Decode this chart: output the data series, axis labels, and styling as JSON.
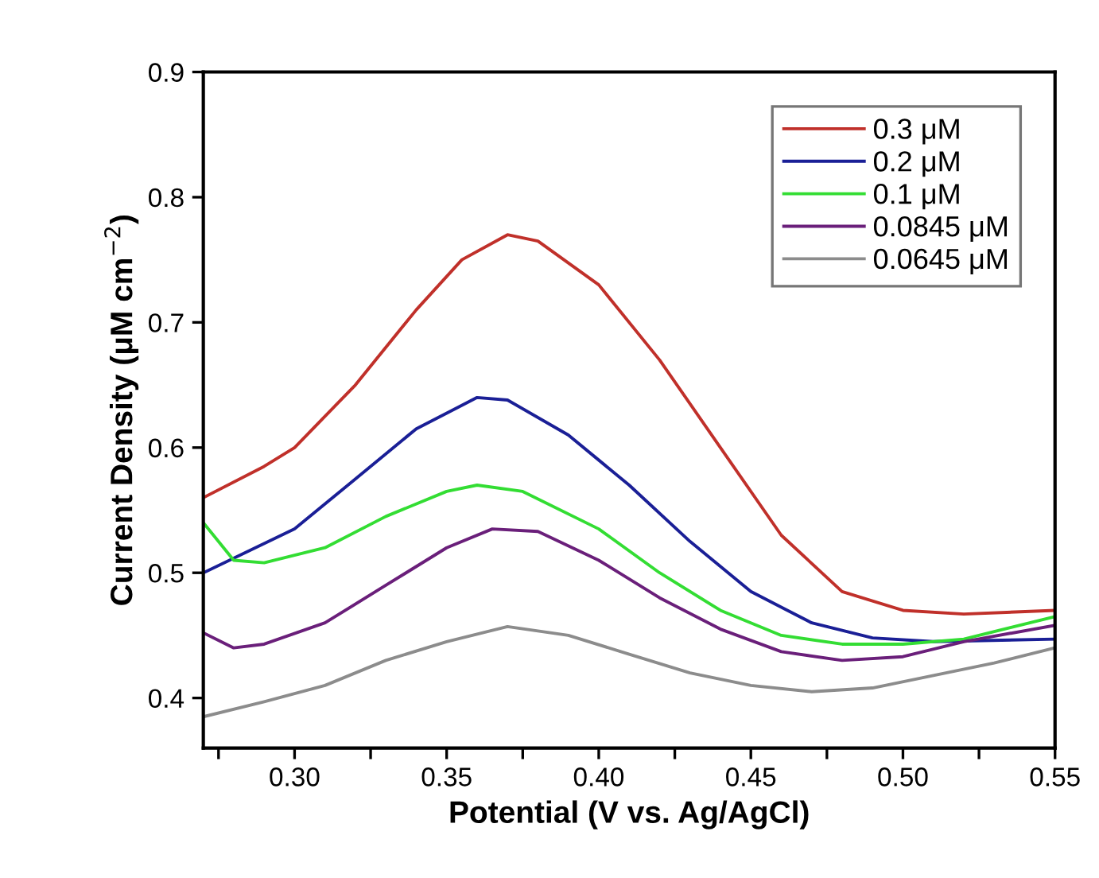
{
  "chart_data": {
    "type": "line",
    "xlabel": "Potential (V vs. Ag/AgCl)",
    "ylabel": "Current Density (μM cm$^{−2}$)",
    "xlim": [
      0.27,
      0.55
    ],
    "xticks": [
      {
        "value": 0.275,
        "label": null
      },
      {
        "value": 0.3,
        "label": "0.30"
      },
      {
        "value": 0.325,
        "label": null
      },
      {
        "value": 0.35,
        "label": "0.35"
      },
      {
        "value": 0.375,
        "label": null
      },
      {
        "value": 0.4,
        "label": "0.40"
      },
      {
        "value": 0.425,
        "label": null
      },
      {
        "value": 0.45,
        "label": "0.45"
      },
      {
        "value": 0.475,
        "label": null
      },
      {
        "value": 0.5,
        "label": "0.50"
      },
      {
        "value": 0.525,
        "label": null
      },
      {
        "value": 0.55,
        "label": "0.55"
      }
    ],
    "ylim": [
      0.36,
      0.9
    ],
    "yticks": [
      0.4,
      0.5,
      0.6,
      0.7,
      0.8,
      0.9
    ],
    "grid": false,
    "legend": "top right",
    "marker": "none",
    "line_style": "solid",
    "series": [
      {
        "name": "0.3 μM",
        "color": "#c0302a",
        "x": [
          0.27,
          0.29,
          0.3,
          0.32,
          0.34,
          0.355,
          0.37,
          0.38,
          0.4,
          0.42,
          0.44,
          0.46,
          0.48,
          0.5,
          0.52,
          0.55
        ],
        "values": [
          0.56,
          0.585,
          0.6,
          0.65,
          0.71,
          0.75,
          0.77,
          0.765,
          0.73,
          0.67,
          0.6,
          0.53,
          0.485,
          0.47,
          0.467,
          0.47
        ]
      },
      {
        "name": "0.2 μM",
        "color": "#1a1f96",
        "x": [
          0.27,
          0.3,
          0.32,
          0.34,
          0.36,
          0.37,
          0.39,
          0.41,
          0.43,
          0.45,
          0.47,
          0.49,
          0.51,
          0.55
        ],
        "values": [
          0.5,
          0.535,
          0.575,
          0.615,
          0.64,
          0.638,
          0.61,
          0.57,
          0.525,
          0.485,
          0.46,
          0.448,
          0.445,
          0.447
        ]
      },
      {
        "name": "0.1 μM",
        "color": "#33dd33",
        "x": [
          0.27,
          0.28,
          0.29,
          0.31,
          0.33,
          0.35,
          0.36,
          0.375,
          0.4,
          0.42,
          0.44,
          0.46,
          0.48,
          0.5,
          0.52,
          0.55
        ],
        "values": [
          0.54,
          0.51,
          0.508,
          0.52,
          0.545,
          0.565,
          0.57,
          0.565,
          0.535,
          0.5,
          0.47,
          0.45,
          0.443,
          0.443,
          0.447,
          0.465
        ]
      },
      {
        "name": "0.0845 μM",
        "color": "#6a1f7a",
        "x": [
          0.27,
          0.28,
          0.29,
          0.31,
          0.33,
          0.35,
          0.365,
          0.38,
          0.4,
          0.42,
          0.44,
          0.46,
          0.48,
          0.5,
          0.52,
          0.55
        ],
        "values": [
          0.452,
          0.44,
          0.443,
          0.46,
          0.49,
          0.52,
          0.535,
          0.533,
          0.51,
          0.48,
          0.455,
          0.437,
          0.43,
          0.433,
          0.445,
          0.458
        ]
      },
      {
        "name": "0.0645 μM",
        "color": "#8c8c8c",
        "x": [
          0.27,
          0.29,
          0.31,
          0.33,
          0.35,
          0.37,
          0.39,
          0.41,
          0.43,
          0.45,
          0.47,
          0.49,
          0.51,
          0.53,
          0.55
        ],
        "values": [
          0.385,
          0.397,
          0.41,
          0.43,
          0.445,
          0.457,
          0.45,
          0.435,
          0.42,
          0.41,
          0.405,
          0.408,
          0.418,
          0.428,
          0.44
        ]
      }
    ]
  }
}
